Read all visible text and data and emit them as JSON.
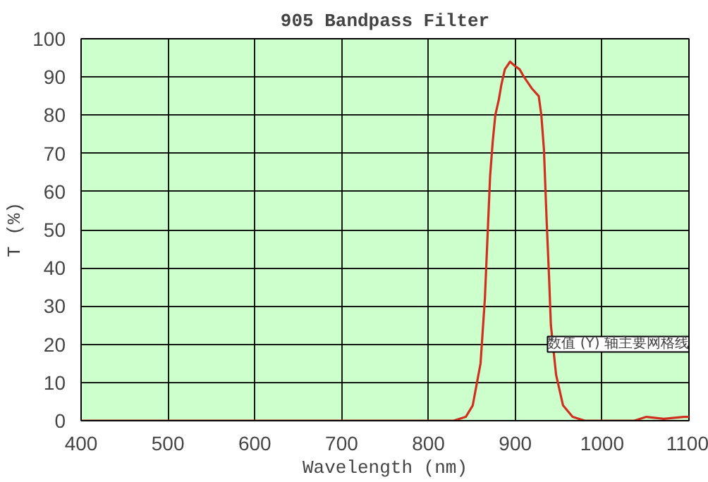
{
  "chart_data": {
    "type": "line",
    "title": "905 Bandpass Filter",
    "xlabel": "Wavelength (nm)",
    "ylabel": "T (%)",
    "xlim": [
      400,
      1100
    ],
    "xticks": [
      400,
      500,
      600,
      700,
      800,
      900,
      1000,
      1100
    ],
    "ylim": [
      0,
      100
    ],
    "yticks": [
      0,
      10,
      20,
      30,
      40,
      50,
      60,
      70,
      80,
      90,
      100
    ],
    "grid": true,
    "series": [
      {
        "color": "#d03020",
        "x": [
          400,
          829,
          843,
          851,
          860,
          865,
          868,
          871,
          874,
          877,
          881,
          884,
          888,
          894,
          899,
          905,
          910,
          919,
          927,
          930,
          933,
          936,
          939,
          941,
          947,
          955,
          966,
          980,
          1037,
          1051,
          1071,
          1094,
          1100
        ],
        "values": [
          0,
          0,
          1,
          4,
          15,
          32,
          48,
          64,
          73,
          80,
          84,
          88,
          92,
          94,
          93,
          92,
          90,
          87,
          85,
          80,
          71,
          53,
          37,
          25,
          12,
          4,
          1,
          0,
          0,
          1,
          0.5,
          1,
          1
        ]
      }
    ],
    "annotations": [
      "数值 (Y) 轴主要网格线"
    ]
  }
}
